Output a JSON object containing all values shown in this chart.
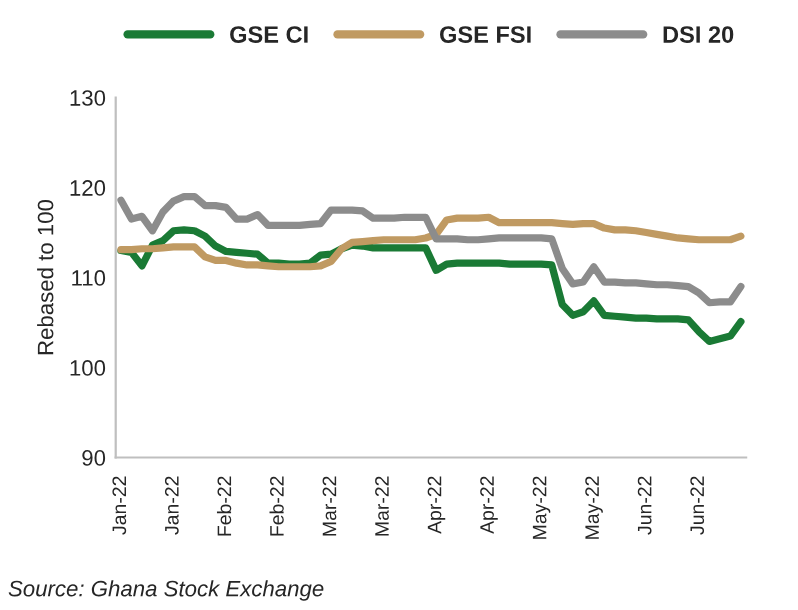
{
  "chart_data": {
    "type": "line",
    "ylabel": "Rebased to 100",
    "categories": [
      "Jan-22",
      null,
      null,
      null,
      null,
      "Jan-22",
      null,
      null,
      null,
      null,
      "Feb-22",
      null,
      null,
      null,
      null,
      "Feb-22",
      null,
      null,
      null,
      null,
      "Mar-22",
      null,
      null,
      null,
      null,
      "Mar-22",
      null,
      null,
      null,
      null,
      "Apr-22",
      null,
      null,
      null,
      null,
      "Apr-22",
      null,
      null,
      null,
      null,
      "May-22",
      null,
      null,
      null,
      null,
      "May-22",
      null,
      null,
      null,
      null,
      "Jun-22",
      null,
      null,
      null,
      null,
      "Jun-22",
      null,
      null,
      null,
      null
    ],
    "series": [
      {
        "name": "GSE CI",
        "color": "#1a7a35",
        "values": [
          113,
          112.8,
          111.3,
          113.6,
          114.1,
          115.2,
          115.3,
          115.2,
          114.6,
          113.5,
          112.9,
          112.8,
          112.7,
          112.6,
          111.6,
          111.6,
          111.5,
          111.5,
          111.6,
          112.5,
          112.6,
          113.2,
          113.6,
          113.5,
          113.3,
          113.3,
          113.3,
          113.3,
          113.3,
          113.3,
          110.8,
          111.5,
          111.6,
          111.6,
          111.6,
          111.6,
          111.6,
          111.5,
          111.5,
          111.5,
          111.5,
          111.4,
          107,
          105.8,
          106.2,
          107.4,
          105.8,
          105.7,
          105.6,
          105.5,
          105.5,
          105.4,
          105.4,
          105.4,
          105.3,
          104,
          102.9,
          103.2,
          103.5,
          105.1
        ]
      },
      {
        "name": "GSE FSI",
        "color": "#c09a62",
        "values": [
          113.1,
          113.1,
          113.2,
          113.2,
          113.3,
          113.4,
          113.4,
          113.4,
          112.3,
          111.9,
          111.9,
          111.6,
          111.4,
          111.4,
          111.3,
          111.2,
          111.2,
          111.2,
          111.2,
          111.3,
          111.8,
          113.2,
          113.9,
          114,
          114.1,
          114.2,
          114.2,
          114.2,
          114.2,
          114.4,
          114.8,
          116.4,
          116.6,
          116.6,
          116.6,
          116.7,
          116.1,
          116.1,
          116.1,
          116.1,
          116.1,
          116.1,
          116,
          115.9,
          116,
          116,
          115.5,
          115.3,
          115.3,
          115.2,
          115,
          114.8,
          114.6,
          114.4,
          114.3,
          114.2,
          114.2,
          114.2,
          114.2,
          114.6
        ]
      },
      {
        "name": "DSI 20",
        "color": "#8c8c8c",
        "values": [
          118.6,
          116.5,
          116.8,
          115.2,
          117.3,
          118.5,
          119,
          119,
          118,
          118,
          117.8,
          116.5,
          116.5,
          117,
          115.8,
          115.8,
          115.8,
          115.8,
          115.9,
          116,
          117.5,
          117.5,
          117.5,
          117.4,
          116.6,
          116.6,
          116.6,
          116.7,
          116.7,
          116.7,
          114.3,
          114.3,
          114.3,
          114.2,
          114.2,
          114.3,
          114.4,
          114.4,
          114.4,
          114.4,
          114.4,
          114.3,
          111,
          109.3,
          109.5,
          111.2,
          109.5,
          109.5,
          109.4,
          109.4,
          109.3,
          109.2,
          109.2,
          109.1,
          109,
          108.3,
          107.2,
          107.3,
          107.3,
          109
        ]
      }
    ],
    "ylim": [
      90,
      130
    ],
    "yticks": [
      90,
      100,
      110,
      120,
      130
    ],
    "grid": false,
    "legend": "top",
    "marker": "none",
    "line_style": "solid",
    "annotations": [
      "Source: Ghana Stock Exchange"
    ]
  }
}
